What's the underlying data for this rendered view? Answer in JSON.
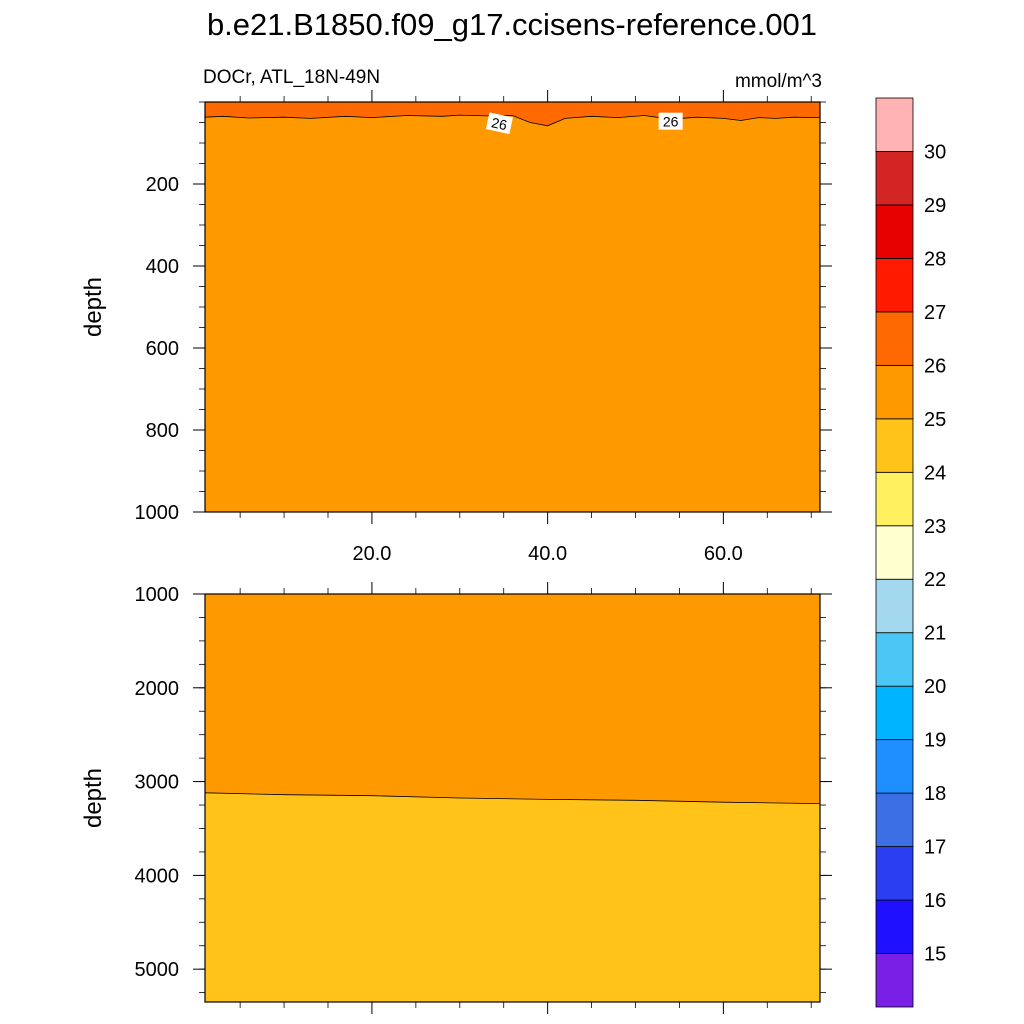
{
  "chart_data": {
    "type": "contour",
    "title": "b.e21.B1850.f09_g17.ccisens-reference.001",
    "subtitle_left": "DOCr, ATL_18N-49N",
    "subtitle_right": "mmol/m^3",
    "xlim": [
      1,
      71
    ],
    "x_ticks": [
      20,
      40,
      60
    ],
    "x_tick_labels": [
      "20.0",
      "40.0",
      "60.0"
    ],
    "colorbar": {
      "levels": [
        "15",
        "16",
        "17",
        "18",
        "19",
        "20",
        "21",
        "22",
        "23",
        "24",
        "25",
        "26",
        "27",
        "28",
        "29",
        "30"
      ],
      "colors": [
        "#7a1fe6",
        "#1f10ff",
        "#2b3ff0",
        "#3b6fe3",
        "#1f8fff",
        "#00b4ff",
        "#4cc6f5",
        "#a3d8ef",
        "#ffffd0",
        "#fff060",
        "#ffc31a",
        "#ff9900",
        "#ff6a00",
        "#ff1a00",
        "#e60000",
        "#d42525",
        "#ffb3b3"
      ]
    },
    "panels": [
      {
        "name": "upper",
        "ylabel": "depth",
        "ylim": [
          0,
          1000
        ],
        "y_ticks": [
          200,
          400,
          600,
          800,
          1000
        ],
        "y_tick_labels": [
          "200",
          "400",
          "600",
          "800",
          "1000"
        ],
        "background_level_color": "#ff9900",
        "contours": [
          {
            "level": "26",
            "fill_above": "#ff6a00",
            "x": [
              1,
              3,
              6,
              10,
              13,
              17,
              20,
              24,
              28,
              30,
              33,
              36,
              38,
              40,
              42,
              45,
              48,
              51,
              54,
              57,
              60,
              62,
              64,
              66,
              68,
              71
            ],
            "depth": [
              37,
              35,
              39,
              37,
              40,
              35,
              38,
              33,
              35,
              32,
              34,
              33,
              50,
              58,
              40,
              35,
              38,
              33,
              42,
              37,
              40,
              45,
              38,
              40,
              37,
              38
            ]
          }
        ],
        "contour_labels": [
          {
            "text": "26",
            "x": 34.5,
            "depth": 53
          },
          {
            "text": "26",
            "x": 54,
            "depth": 48
          }
        ]
      },
      {
        "name": "lower",
        "ylabel": "depth",
        "ylim": [
          1000,
          5350
        ],
        "y_ticks": [
          1000,
          2000,
          3000,
          4000,
          5000
        ],
        "y_tick_labels": [
          "1000",
          "2000",
          "3000",
          "4000",
          "5000"
        ],
        "background_level_color": "#ffc31a",
        "contours": [
          {
            "level": "25",
            "fill_above": "#ff9900",
            "x": [
              1,
              10,
              20,
              30,
              40,
              50,
              60,
              71
            ],
            "depth": [
              3120,
              3140,
              3150,
              3175,
              3190,
              3200,
              3220,
              3235
            ]
          }
        ],
        "contour_labels": []
      }
    ]
  }
}
